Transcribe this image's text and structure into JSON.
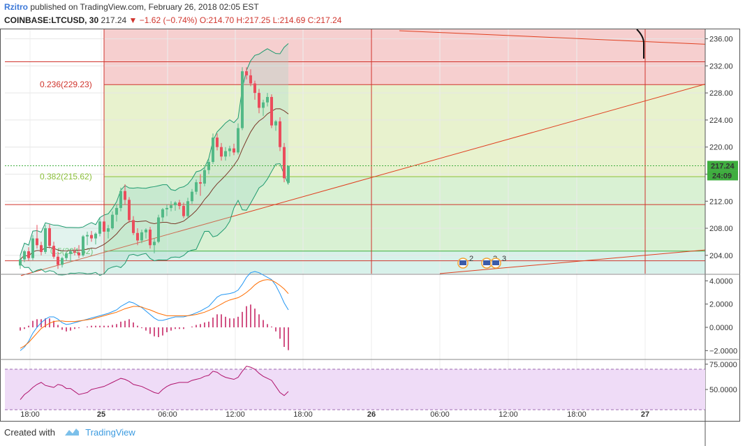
{
  "header": {
    "author": "Rzitro",
    "published": "published on TradingView.com, February 26, 2018 02:05 EST",
    "symbol": "COINBASE:LTCUSD, 30",
    "last": "217.24",
    "arrow": "▼",
    "change": "−1.62 (−0.74%)",
    "ohlc": "O:214.70 H:217.25 L:214.69 C:217.24"
  },
  "footer": {
    "created_with": "Created with",
    "brand": "TradingView"
  },
  "chart_data": [
    {
      "type": "candlestick",
      "title": "COINBASE:LTCUSD, 30",
      "y_ticks": [
        204,
        208,
        212,
        216,
        220,
        224,
        228,
        232,
        236
      ],
      "ylim": [
        201.3,
        237.4
      ],
      "x_ticks": [
        "18:00",
        "25",
        "06:00",
        "12:00",
        "18:00",
        "26",
        "06:00",
        "12:00",
        "18:00",
        "27"
      ],
      "price_label": "217.24",
      "countdown_label": "24:09",
      "fib_levels": [
        {
          "label": "0.236(229.23)",
          "value": 229.23,
          "color": "#e05050"
        },
        {
          "label": "0.382(215.62)",
          "value": 215.62,
          "color": "#8bbf3a"
        },
        {
          "label": "0.5(204.62)",
          "value": 204.62,
          "color": "#5cbf5c"
        }
      ],
      "event_markers": [
        "2",
        "2",
        "3"
      ],
      "candles": [
        [
          202.5,
          204.0,
          202.0,
          203.4
        ],
        [
          203.4,
          204.8,
          203.0,
          204.6
        ],
        [
          204.6,
          205.2,
          203.2,
          203.6
        ],
        [
          203.6,
          207.0,
          203.3,
          206.5
        ],
        [
          206.5,
          208.5,
          205.0,
          205.5
        ],
        [
          205.5,
          206.0,
          204.0,
          204.5
        ],
        [
          204.5,
          208.5,
          204.2,
          208.0
        ],
        [
          208.0,
          208.6,
          205.0,
          205.4
        ],
        [
          205.4,
          206.0,
          203.5,
          203.8
        ],
        [
          203.8,
          204.5,
          202.0,
          202.6
        ],
        [
          202.6,
          203.8,
          202.2,
          203.6
        ],
        [
          203.6,
          204.5,
          203.2,
          204.2
        ],
        [
          204.2,
          205.0,
          203.0,
          204.6
        ],
        [
          204.6,
          205.2,
          204.0,
          204.4
        ],
        [
          204.4,
          205.5,
          203.6,
          204.0
        ],
        [
          204.0,
          207.0,
          203.8,
          206.8
        ],
        [
          206.8,
          207.5,
          205.5,
          207.0
        ],
        [
          207.0,
          207.6,
          206.0,
          206.5
        ],
        [
          206.5,
          207.4,
          205.6,
          207.2
        ],
        [
          207.2,
          209.5,
          206.8,
          209.0
        ],
        [
          209.0,
          210.0,
          206.0,
          207.5
        ],
        [
          207.5,
          208.5,
          206.5,
          208.0
        ],
        [
          208.0,
          210.5,
          207.8,
          210.0
        ],
        [
          210.0,
          211.5,
          209.0,
          211.0
        ],
        [
          211.0,
          214.0,
          210.5,
          213.5
        ],
        [
          213.5,
          214.5,
          211.5,
          212.2
        ],
        [
          212.2,
          212.6,
          208.8,
          209.2
        ],
        [
          209.2,
          209.8,
          207.0,
          207.3
        ],
        [
          207.3,
          208.0,
          205.5,
          206.2
        ],
        [
          206.2,
          207.8,
          205.8,
          207.4
        ],
        [
          207.4,
          208.0,
          206.5,
          207.8
        ],
        [
          207.8,
          208.2,
          205.0,
          205.5
        ],
        [
          205.5,
          206.5,
          204.3,
          206.0
        ],
        [
          206.0,
          210.0,
          205.8,
          209.6
        ],
        [
          209.6,
          211.0,
          209.0,
          210.8
        ],
        [
          210.8,
          211.5,
          209.8,
          211.0
        ],
        [
          211.0,
          212.0,
          210.5,
          211.4
        ],
        [
          211.4,
          212.0,
          210.6,
          211.8
        ],
        [
          211.8,
          212.2,
          210.8,
          211.3
        ],
        [
          211.3,
          211.8,
          209.5,
          209.8
        ],
        [
          209.8,
          212.5,
          209.5,
          212.0
        ],
        [
          212.0,
          213.8,
          211.6,
          213.4
        ],
        [
          213.4,
          215.2,
          213.0,
          214.8
        ],
        [
          214.8,
          216.0,
          212.8,
          214.6
        ],
        [
          214.6,
          217.0,
          214.2,
          216.6
        ],
        [
          216.6,
          218.2,
          216.0,
          217.8
        ],
        [
          217.8,
          222.0,
          217.5,
          221.4
        ],
        [
          221.4,
          222.0,
          219.5,
          220.0
        ],
        [
          220.0,
          220.6,
          218.0,
          218.6
        ],
        [
          218.6,
          220.0,
          218.0,
          219.4
        ],
        [
          219.4,
          220.2,
          218.6,
          219.8
        ],
        [
          219.8,
          220.5,
          218.8,
          219.2
        ],
        [
          219.2,
          223.5,
          218.9,
          222.8
        ],
        [
          222.8,
          231.8,
          222.5,
          231.2
        ],
        [
          231.2,
          231.8,
          230.0,
          230.6
        ],
        [
          230.6,
          231.5,
          229.0,
          229.4
        ],
        [
          229.4,
          229.8,
          227.0,
          228.0
        ],
        [
          228.0,
          228.6,
          225.0,
          225.8
        ],
        [
          225.8,
          227.0,
          224.6,
          226.6
        ],
        [
          226.6,
          228.0,
          226.0,
          227.4
        ],
        [
          227.4,
          227.8,
          222.8,
          223.2
        ],
        [
          223.2,
          224.0,
          222.4,
          223.8
        ],
        [
          223.8,
          224.4,
          219.4,
          220.0
        ],
        [
          220.0,
          220.6,
          214.8,
          215.4
        ],
        [
          214.7,
          217.25,
          214.69,
          217.24
        ]
      ],
      "macd": {
        "y_ticks": [
          -2.0,
          0.0,
          2.0,
          4.0
        ],
        "ylim": [
          -2.7,
          4.5
        ],
        "macd_line": [
          -2.0,
          -1.7,
          -1.2,
          -0.5,
          0.0,
          0.4,
          0.7,
          0.9,
          0.9,
          0.7,
          0.4,
          0.25,
          0.3,
          0.4,
          0.5,
          0.6,
          0.7,
          0.8,
          0.9,
          1.0,
          1.1,
          1.2,
          1.35,
          1.5,
          1.8,
          2.0,
          2.2,
          2.1,
          1.9,
          1.7,
          1.4,
          1.1,
          0.8,
          0.6,
          0.6,
          0.7,
          0.8,
          0.9,
          0.9,
          0.9,
          1.0,
          1.1,
          1.25,
          1.4,
          1.6,
          1.8,
          2.2,
          2.6,
          2.8,
          2.85,
          2.9,
          3.0,
          3.2,
          3.7,
          4.3,
          4.7,
          4.8,
          4.7,
          4.5,
          4.3,
          4.1,
          3.6,
          2.9,
          2.1,
          1.5
        ],
        "signal_line": [
          -1.8,
          -1.6,
          -1.3,
          -0.9,
          -0.5,
          -0.1,
          0.15,
          0.35,
          0.5,
          0.55,
          0.55,
          0.5,
          0.5,
          0.5,
          0.55,
          0.6,
          0.65,
          0.7,
          0.8,
          0.9,
          1.0,
          1.1,
          1.2,
          1.3,
          1.45,
          1.6,
          1.7,
          1.8,
          1.8,
          1.75,
          1.6,
          1.5,
          1.35,
          1.2,
          1.1,
          1.0,
          1.0,
          1.0,
          1.0,
          1.0,
          1.0,
          1.05,
          1.1,
          1.2,
          1.3,
          1.45,
          1.6,
          1.8,
          2.0,
          2.2,
          2.35,
          2.45,
          2.55,
          2.75,
          3.0,
          3.3,
          3.65,
          3.9,
          4.05,
          4.1,
          4.05,
          3.85,
          3.6,
          3.3,
          2.9
        ]
      },
      "rsi": {
        "y_ticks": [
          50.0,
          75.0
        ],
        "ylim": [
          30,
          79
        ],
        "bands": [
          70,
          30
        ],
        "values": [
          40,
          45,
          48,
          52,
          55,
          57,
          54,
          53,
          52,
          55,
          54,
          51,
          51,
          48,
          45,
          46,
          47,
          50,
          51,
          52,
          53,
          55,
          57,
          59,
          61,
          60,
          58,
          55,
          54,
          53,
          51,
          49,
          47,
          46,
          50,
          53,
          55,
          56,
          57,
          57,
          57,
          59,
          60,
          61,
          63,
          64,
          68,
          67,
          64,
          62,
          61,
          60,
          62,
          68,
          73,
          72,
          70,
          66,
          63,
          61,
          59,
          53,
          47,
          44,
          48
        ]
      }
    }
  ]
}
